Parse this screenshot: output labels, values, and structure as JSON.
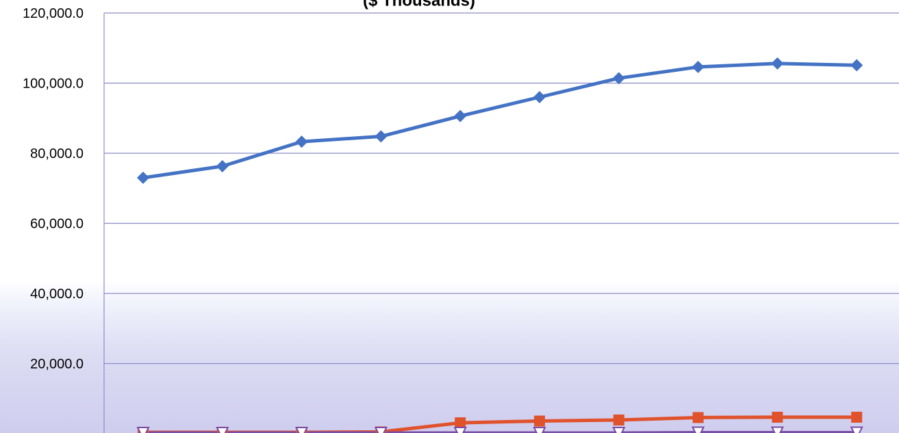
{
  "chart_data": {
    "type": "line",
    "title": "($ Thousands)",
    "xlabel": "",
    "ylabel": "",
    "ylim": [
      0,
      120000
    ],
    "yticks": [
      0,
      20000,
      40000,
      60000,
      80000,
      100000,
      120000
    ],
    "ytick_labels": [
      "",
      "20,000.0",
      "40,000.0",
      "60,000.0",
      "80,000.0",
      "100,000.0",
      "120,000.0"
    ],
    "grid": true,
    "x_count": 10,
    "series": [
      {
        "color": "#4472c4",
        "marker": "diamond",
        "values": [
          73000,
          76300,
          83300,
          84800,
          90600,
          96000,
          101400,
          104600,
          105600,
          105100
        ]
      },
      {
        "color": "#e0522c",
        "marker": "square",
        "values": [
          400,
          400,
          400,
          500,
          3100,
          3600,
          3900,
          4600,
          4700,
          4700
        ]
      },
      {
        "color": "#8fb24a",
        "marker": "x",
        "values": [
          100,
          100,
          100,
          100,
          100,
          100,
          100,
          100,
          100,
          100
        ]
      },
      {
        "color": "#7a4ca6",
        "marker": "triangle",
        "values": [
          200,
          200,
          200,
          200,
          200,
          200,
          200,
          300,
          300,
          300
        ]
      }
    ]
  }
}
